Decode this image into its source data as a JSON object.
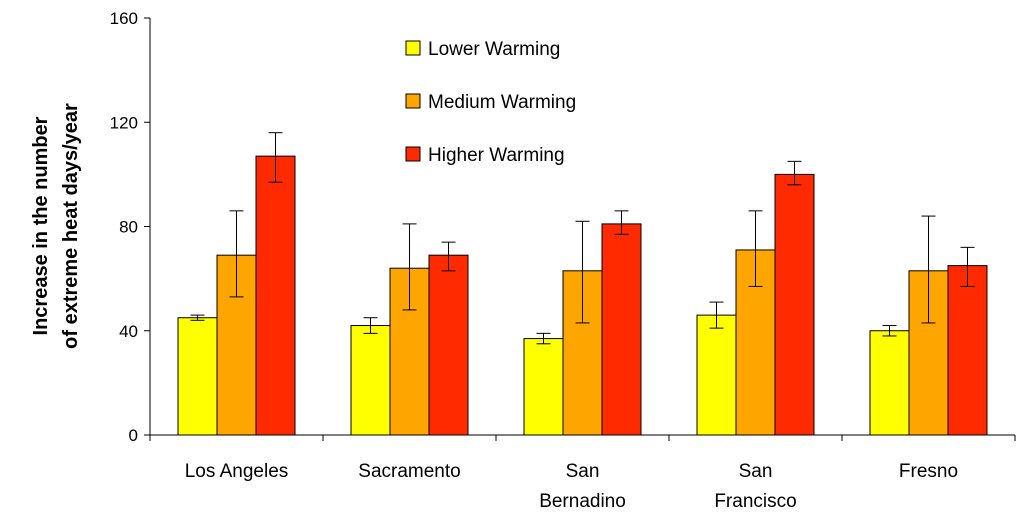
{
  "chart_data": {
    "type": "bar",
    "title": "",
    "xlabel": "",
    "ylabel_lines": [
      "Increase in the number",
      "of extreme heat days/year"
    ],
    "ylim": [
      0,
      160
    ],
    "yticks": [
      0,
      40,
      80,
      120,
      160
    ],
    "categories": [
      [
        "Los Angeles"
      ],
      [
        "Sacramento"
      ],
      [
        "San",
        "Bernadino"
      ],
      [
        "San",
        "Francisco"
      ],
      [
        "Fresno"
      ]
    ],
    "series": [
      {
        "name": "Lower Warming",
        "color": "#ffff00",
        "values": [
          45,
          42,
          37,
          46,
          40
        ],
        "err_low": [
          44,
          39,
          35,
          41,
          38
        ],
        "err_high": [
          46,
          45,
          39,
          51,
          42
        ]
      },
      {
        "name": "Medium Warming",
        "color": "#ffa500",
        "values": [
          69,
          64,
          63,
          71,
          63
        ],
        "err_low": [
          53,
          48,
          43,
          57,
          43
        ],
        "err_high": [
          86,
          81,
          82,
          86,
          84
        ]
      },
      {
        "name": "Higher Warming",
        "color": "#ff2a00",
        "values": [
          107,
          69,
          81,
          100,
          65
        ],
        "err_low": [
          97,
          63,
          77,
          96,
          57
        ],
        "err_high": [
          116,
          74,
          86,
          105,
          72
        ]
      }
    ],
    "legend_position": "top-center",
    "grid": false
  }
}
